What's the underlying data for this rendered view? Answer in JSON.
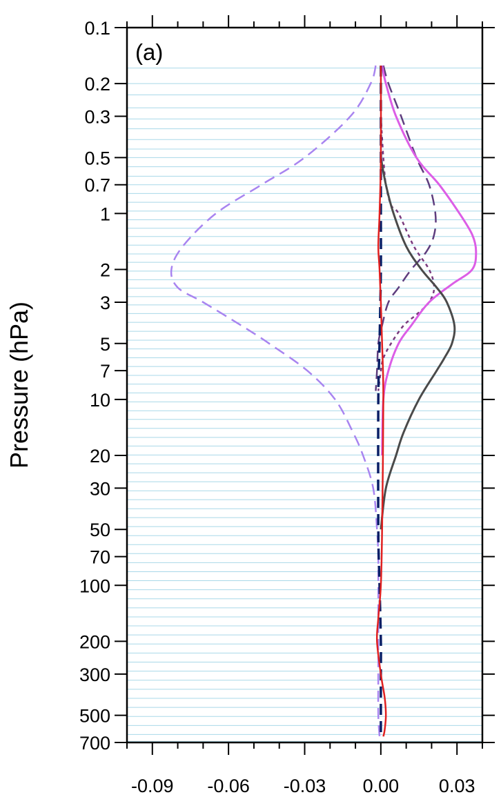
{
  "chart_data": {
    "type": "line",
    "panel_label": "(a)",
    "xlabel": "",
    "ylabel": "Pressure (hPa)",
    "xlim": [
      -0.1,
      0.04
    ],
    "ylim": [
      700,
      0.1
    ],
    "y_scale": "log",
    "y_reversed": true,
    "x_ticks": [
      -0.09,
      -0.06,
      -0.03,
      0.0,
      0.03
    ],
    "x_tick_labels": [
      "-0.09",
      "-0.06",
      "-0.03",
      "0.00",
      "0.03"
    ],
    "x_minor_ticks": [
      -0.1,
      -0.08,
      -0.07,
      -0.05,
      -0.04,
      -0.02,
      -0.01,
      0.01,
      0.02,
      0.04
    ],
    "y_ticks": [
      0.1,
      0.2,
      0.3,
      0.5,
      0.7,
      1,
      2,
      3,
      5,
      7,
      10,
      20,
      30,
      50,
      70,
      100,
      200,
      300,
      500,
      700
    ],
    "y_tick_labels": [
      "0.1",
      "0.2",
      "0.3",
      "0.5",
      "0.7",
      "1",
      "2",
      "3",
      "5",
      "7",
      "10",
      "20",
      "30",
      "50",
      "70",
      "100",
      "200",
      "300",
      "500",
      "700"
    ],
    "grid": true,
    "grid_color": "#a8d8e8",
    "grid_levels": [
      0.165,
      0.2,
      0.23,
      0.27,
      0.31,
      0.35,
      0.4,
      0.45,
      0.5,
      0.56,
      0.63,
      0.7,
      0.78,
      0.87,
      0.97,
      1.08,
      1.2,
      1.33,
      1.48,
      1.65,
      1.83,
      2.04,
      2.27,
      2.52,
      2.8,
      3.1,
      3.45,
      3.85,
      4.3,
      4.8,
      5.35,
      5.97,
      6.65,
      7.42,
      8.27,
      9.22,
      10.3,
      11.5,
      12.8,
      14.3,
      16.0,
      17.8,
      19.9,
      22.2,
      24.8,
      27.7,
      31.0,
      34.6,
      38.7,
      43.2,
      48.3,
      54.0,
      60.4,
      67.5,
      75.5,
      84.4,
      94.4,
      105.6,
      118.1,
      132.1,
      147.7,
      165.2,
      184.8,
      206.7,
      231.2,
      258.6,
      289.3,
      323.6,
      362.0,
      405.0,
      453.0,
      507.0,
      567.0,
      634.0,
      690.0
    ],
    "series": [
      {
        "color": "#a884f0",
        "dash": "dashed",
        "width": 2.5,
        "p": [
          0.16,
          0.2,
          0.3,
          0.5,
          0.7,
          1,
          1.5,
          2,
          2.5,
          3,
          4,
          5,
          7,
          10,
          15,
          20,
          30,
          50,
          70,
          100,
          200,
          300,
          500,
          650
        ],
        "x": [
          -0.002,
          -0.004,
          -0.012,
          -0.03,
          -0.047,
          -0.065,
          -0.078,
          -0.0825,
          -0.08,
          -0.07,
          -0.055,
          -0.044,
          -0.029,
          -0.018,
          -0.011,
          -0.007,
          -0.003,
          -0.0015,
          -0.001,
          -0.001,
          -0.001,
          -0.001,
          -0.001,
          -0.0005
        ]
      },
      {
        "color": "#5e3d7e",
        "dash": "dashed",
        "width": 2.5,
        "p": [
          0.16,
          0.2,
          0.3,
          0.5,
          0.7,
          1,
          1.3,
          1.6,
          2,
          2.5,
          3,
          4,
          5,
          7,
          9
        ],
        "x": [
          0.001,
          0.003,
          0.008,
          0.014,
          0.019,
          0.0215,
          0.021,
          0.018,
          0.012,
          0.007,
          0.003,
          0.0005,
          -0.001,
          -0.0015,
          -0.002
        ]
      },
      {
        "color": "#7a3a7e",
        "dash": "dotted",
        "width": 2.5,
        "p": [
          0.3,
          0.5,
          0.7,
          0.9,
          1,
          1.5,
          2,
          2.5,
          3,
          3.5,
          4,
          5,
          6,
          7,
          9
        ],
        "x": [
          0.0,
          0.001,
          0.002,
          0.004,
          0.007,
          0.013,
          0.019,
          0.021,
          0.019,
          0.014,
          0.009,
          0.004,
          0.001,
          0.0,
          -0.001
        ]
      },
      {
        "color": "#dc5ee6",
        "dash": "solid",
        "width": 3,
        "p": [
          0.16,
          0.2,
          0.3,
          0.5,
          0.7,
          1,
          1.3,
          1.6,
          2,
          2.4,
          3,
          4,
          5,
          7,
          10,
          20
        ],
        "x": [
          0.0005,
          0.002,
          0.006,
          0.014,
          0.023,
          0.031,
          0.036,
          0.0375,
          0.036,
          0.028,
          0.019,
          0.012,
          0.007,
          0.003,
          0.001,
          0.0005
        ]
      },
      {
        "color": "#4a4a4a",
        "dash": "solid",
        "width": 3,
        "p": [
          0.5,
          0.7,
          1,
          1.5,
          2,
          2.5,
          3,
          4,
          5,
          6,
          7,
          10,
          15,
          20,
          30,
          50
        ],
        "x": [
          0.0,
          0.002,
          0.005,
          0.01,
          0.016,
          0.022,
          0.026,
          0.029,
          0.028,
          0.025,
          0.022,
          0.015,
          0.009,
          0.006,
          0.002,
          0.0
        ]
      },
      {
        "color": "#0a1f66",
        "dash": "dashed",
        "width": 3.5,
        "p": [
          0.16,
          0.5,
          1,
          2,
          5,
          10,
          50,
          100,
          200,
          300,
          500,
          650
        ],
        "x": [
          0.0,
          0.0,
          0.0,
          0.0,
          -0.0005,
          -0.001,
          -0.001,
          -0.0005,
          0.0,
          0.0,
          0.0,
          0.0
        ]
      },
      {
        "color": "#e02020",
        "dash": "solid",
        "width": 2.5,
        "p": [
          0.16,
          0.5,
          1,
          1.5,
          2,
          3,
          5,
          10,
          50,
          100,
          150,
          200,
          300,
          400,
          500,
          600,
          650
        ],
        "x": [
          0.0,
          0.0,
          -0.0005,
          -0.001,
          -0.0005,
          0.0,
          0.0005,
          0.001,
          0.0005,
          0.0,
          -0.001,
          -0.0015,
          0.0,
          0.0015,
          0.002,
          0.0015,
          0.001
        ]
      }
    ]
  }
}
